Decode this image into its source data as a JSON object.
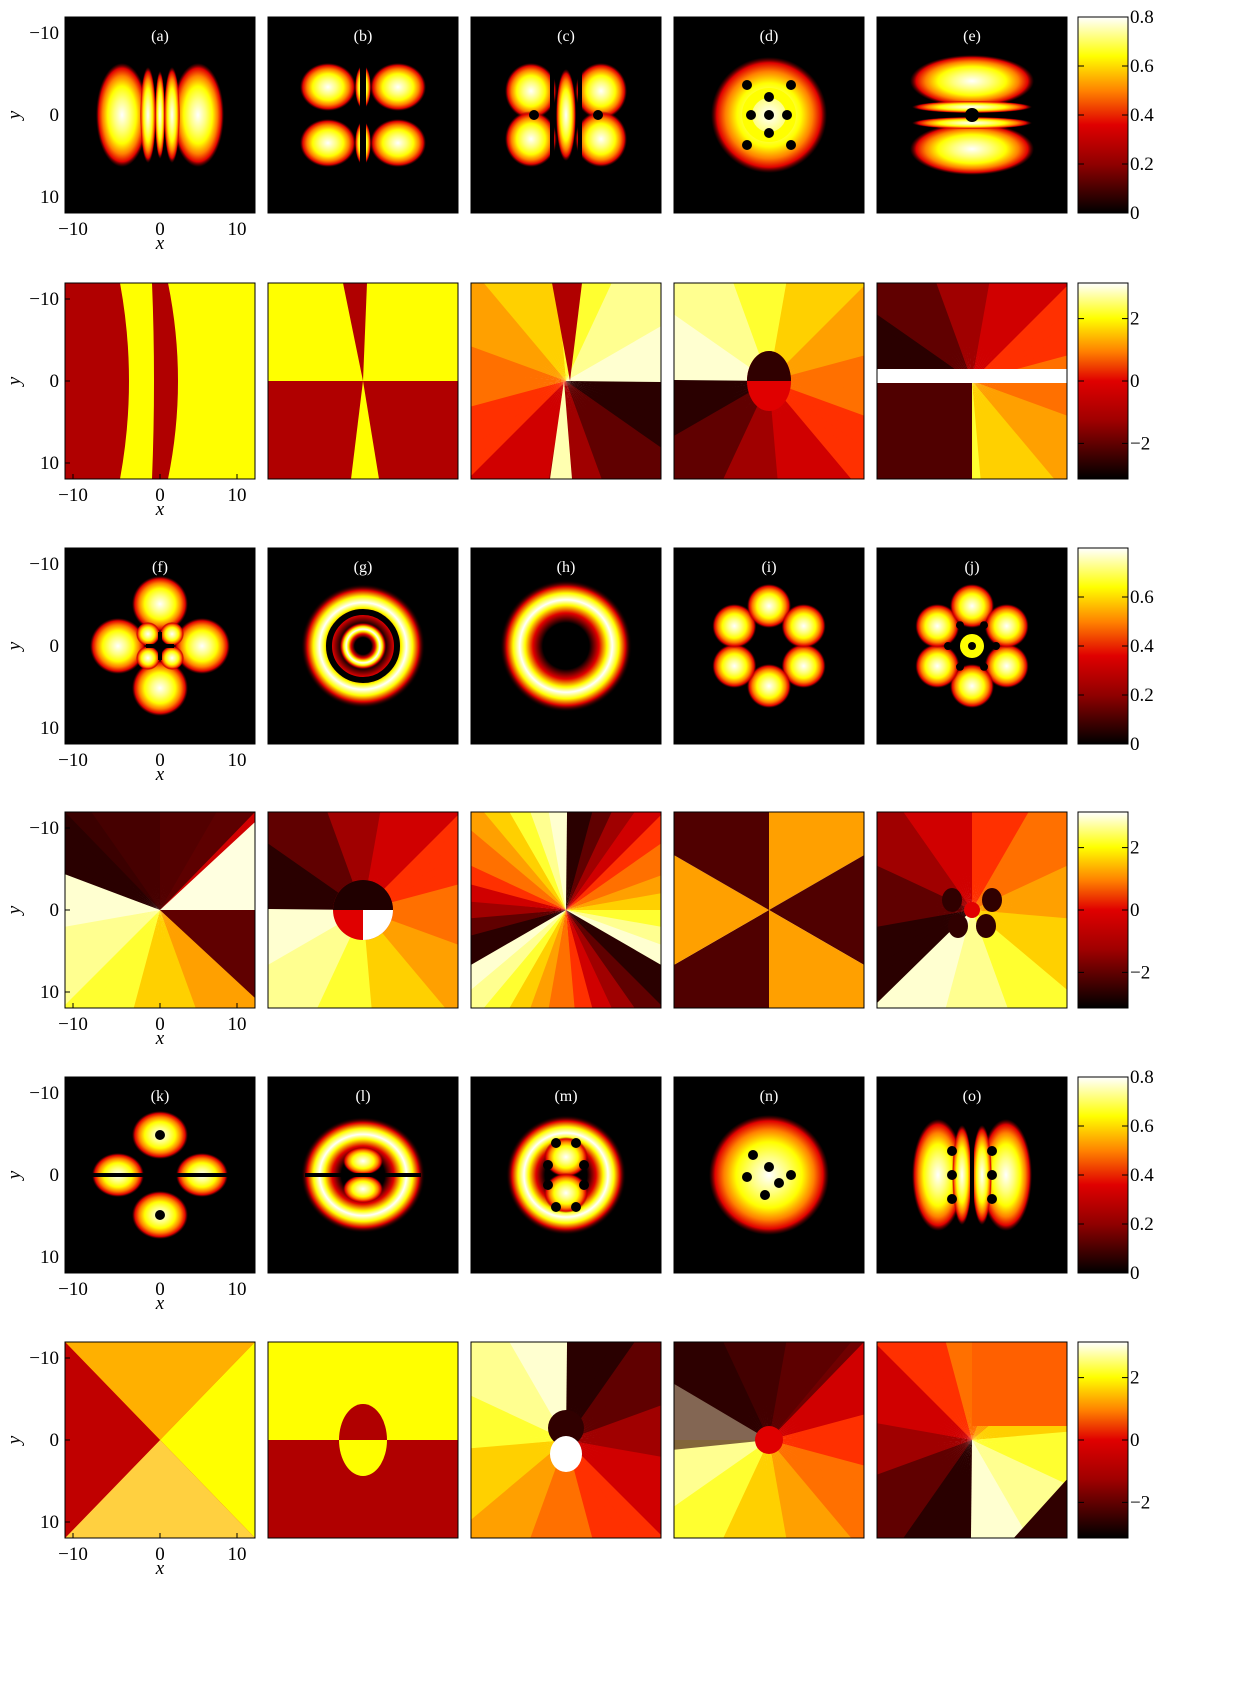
{
  "figure": {
    "kind": "grid of 2D field maps (density and phase)",
    "colormap": "hot",
    "colors": {
      "black": "#000000",
      "dark_red": "#a30000",
      "red": "#e00000",
      "orange": "#ff8000",
      "yellow": "#ffff00",
      "white": "#ffffff"
    },
    "rows": [
      {
        "id": "row1",
        "type": "density",
        "colorbar_ticks": [
          "0.8",
          "0.6",
          "0.4",
          "0.2",
          "0"
        ],
        "colorbar_max": 0.8,
        "panels": [
          {
            "label": "(a)",
            "pattern": "vertical-fringes"
          },
          {
            "label": "(b)",
            "pattern": "four-lobe-cross"
          },
          {
            "label": "(c)",
            "pattern": "four-lobe-with-dots"
          },
          {
            "label": "(d)",
            "pattern": "ring-with-vortex-dots"
          },
          {
            "label": "(e)",
            "pattern": "horizontal-crescents"
          }
        ]
      },
      {
        "id": "row2",
        "type": "phase",
        "colorbar_ticks": [
          "2",
          "0",
          "−2"
        ],
        "panels": [
          {
            "label": "",
            "pattern": "phase-vertical-bands"
          },
          {
            "label": "",
            "pattern": "phase-quadrants"
          },
          {
            "label": "",
            "pattern": "phase-twin-vortex"
          },
          {
            "label": "",
            "pattern": "phase-ring-vortex"
          },
          {
            "label": "",
            "pattern": "phase-horizontal-split"
          }
        ]
      },
      {
        "id": "row3",
        "type": "density",
        "colorbar_ticks": [
          "0.6",
          "0.4",
          "0.2",
          "0"
        ],
        "colorbar_max": 0.8,
        "panels": [
          {
            "label": "(f)",
            "pattern": "four-petal"
          },
          {
            "label": "(g)",
            "pattern": "concentric-rings"
          },
          {
            "label": "(h)",
            "pattern": "single-ring"
          },
          {
            "label": "(i)",
            "pattern": "six-petal"
          },
          {
            "label": "(j)",
            "pattern": "six-petal-with-dots"
          }
        ]
      },
      {
        "id": "row4",
        "type": "phase",
        "colorbar_ticks": [
          "2",
          "0",
          "−2"
        ],
        "panels": [
          {
            "label": "",
            "pattern": "phase-bowtie"
          },
          {
            "label": "",
            "pattern": "phase-disk-vortex"
          },
          {
            "label": "",
            "pattern": "phase-three-sectors"
          },
          {
            "label": "",
            "pattern": "phase-six-wedges"
          },
          {
            "label": "",
            "pattern": "phase-four-vortex"
          }
        ]
      },
      {
        "id": "row5",
        "type": "density",
        "colorbar_ticks": [
          "0.8",
          "0.6",
          "0.4",
          "0.2",
          "0"
        ],
        "colorbar_max": 0.8,
        "panels": [
          {
            "label": "(k)",
            "pattern": "cross-petal"
          },
          {
            "label": "(l)",
            "pattern": "ring-with-bar"
          },
          {
            "label": "(m)",
            "pattern": "ring-double-blob"
          },
          {
            "label": "(n)",
            "pattern": "ring-scattered-dots"
          },
          {
            "label": "(o)",
            "pattern": "vertical-dots-lobes"
          }
        ]
      },
      {
        "id": "row6",
        "type": "phase",
        "colorbar_ticks": [
          "2",
          "0",
          "−2"
        ],
        "panels": [
          {
            "label": "",
            "pattern": "phase-x-cross"
          },
          {
            "label": "",
            "pattern": "phase-ellipse-split"
          },
          {
            "label": "",
            "pattern": "phase-dipole"
          },
          {
            "label": "",
            "pattern": "phase-diagonal-vortex"
          },
          {
            "label": "",
            "pattern": "phase-vertical-split"
          }
        ]
      }
    ],
    "axes": {
      "x_label": "x",
      "y_label": "y",
      "x_ticks": [
        "−10",
        "0",
        "10"
      ],
      "y_ticks": [
        "−10",
        "0",
        "10"
      ]
    }
  }
}
